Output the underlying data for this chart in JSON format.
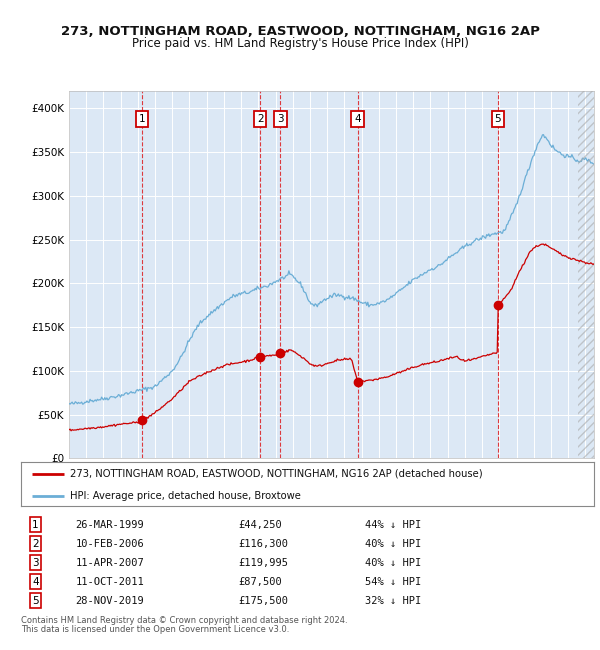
{
  "title1": "273, NOTTINGHAM ROAD, EASTWOOD, NOTTINGHAM, NG16 2AP",
  "title2": "Price paid vs. HM Land Registry's House Price Index (HPI)",
  "legend_line1": "273, NOTTINGHAM ROAD, EASTWOOD, NOTTINGHAM, NG16 2AP (detached house)",
  "legend_line2": "HPI: Average price, detached house, Broxtowe",
  "footer1": "Contains HM Land Registry data © Crown copyright and database right 2024.",
  "footer2": "This data is licensed under the Open Government Licence v3.0.",
  "sale_prices": [
    44250,
    116300,
    119995,
    87500,
    175500
  ],
  "sale_labels": [
    "1",
    "2",
    "3",
    "4",
    "5"
  ],
  "sale_year_fracs": [
    1999.23,
    2006.11,
    2007.28,
    2011.77,
    2019.91
  ],
  "sale_table": [
    [
      "1",
      "26-MAR-1999",
      "£44,250",
      "44% ↓ HPI"
    ],
    [
      "2",
      "10-FEB-2006",
      "£116,300",
      "40% ↓ HPI"
    ],
    [
      "3",
      "11-APR-2007",
      "£119,995",
      "40% ↓ HPI"
    ],
    [
      "4",
      "11-OCT-2011",
      "£87,500",
      "54% ↓ HPI"
    ],
    [
      "5",
      "28-NOV-2019",
      "£175,500",
      "32% ↓ HPI"
    ]
  ],
  "hpi_color": "#6baed6",
  "sale_color": "#cc0000",
  "background_color": "#dce8f5",
  "grid_color": "#ffffff",
  "ylim": [
    0,
    420000
  ],
  "xlim_start": 1995.0,
  "xlim_end": 2025.5
}
